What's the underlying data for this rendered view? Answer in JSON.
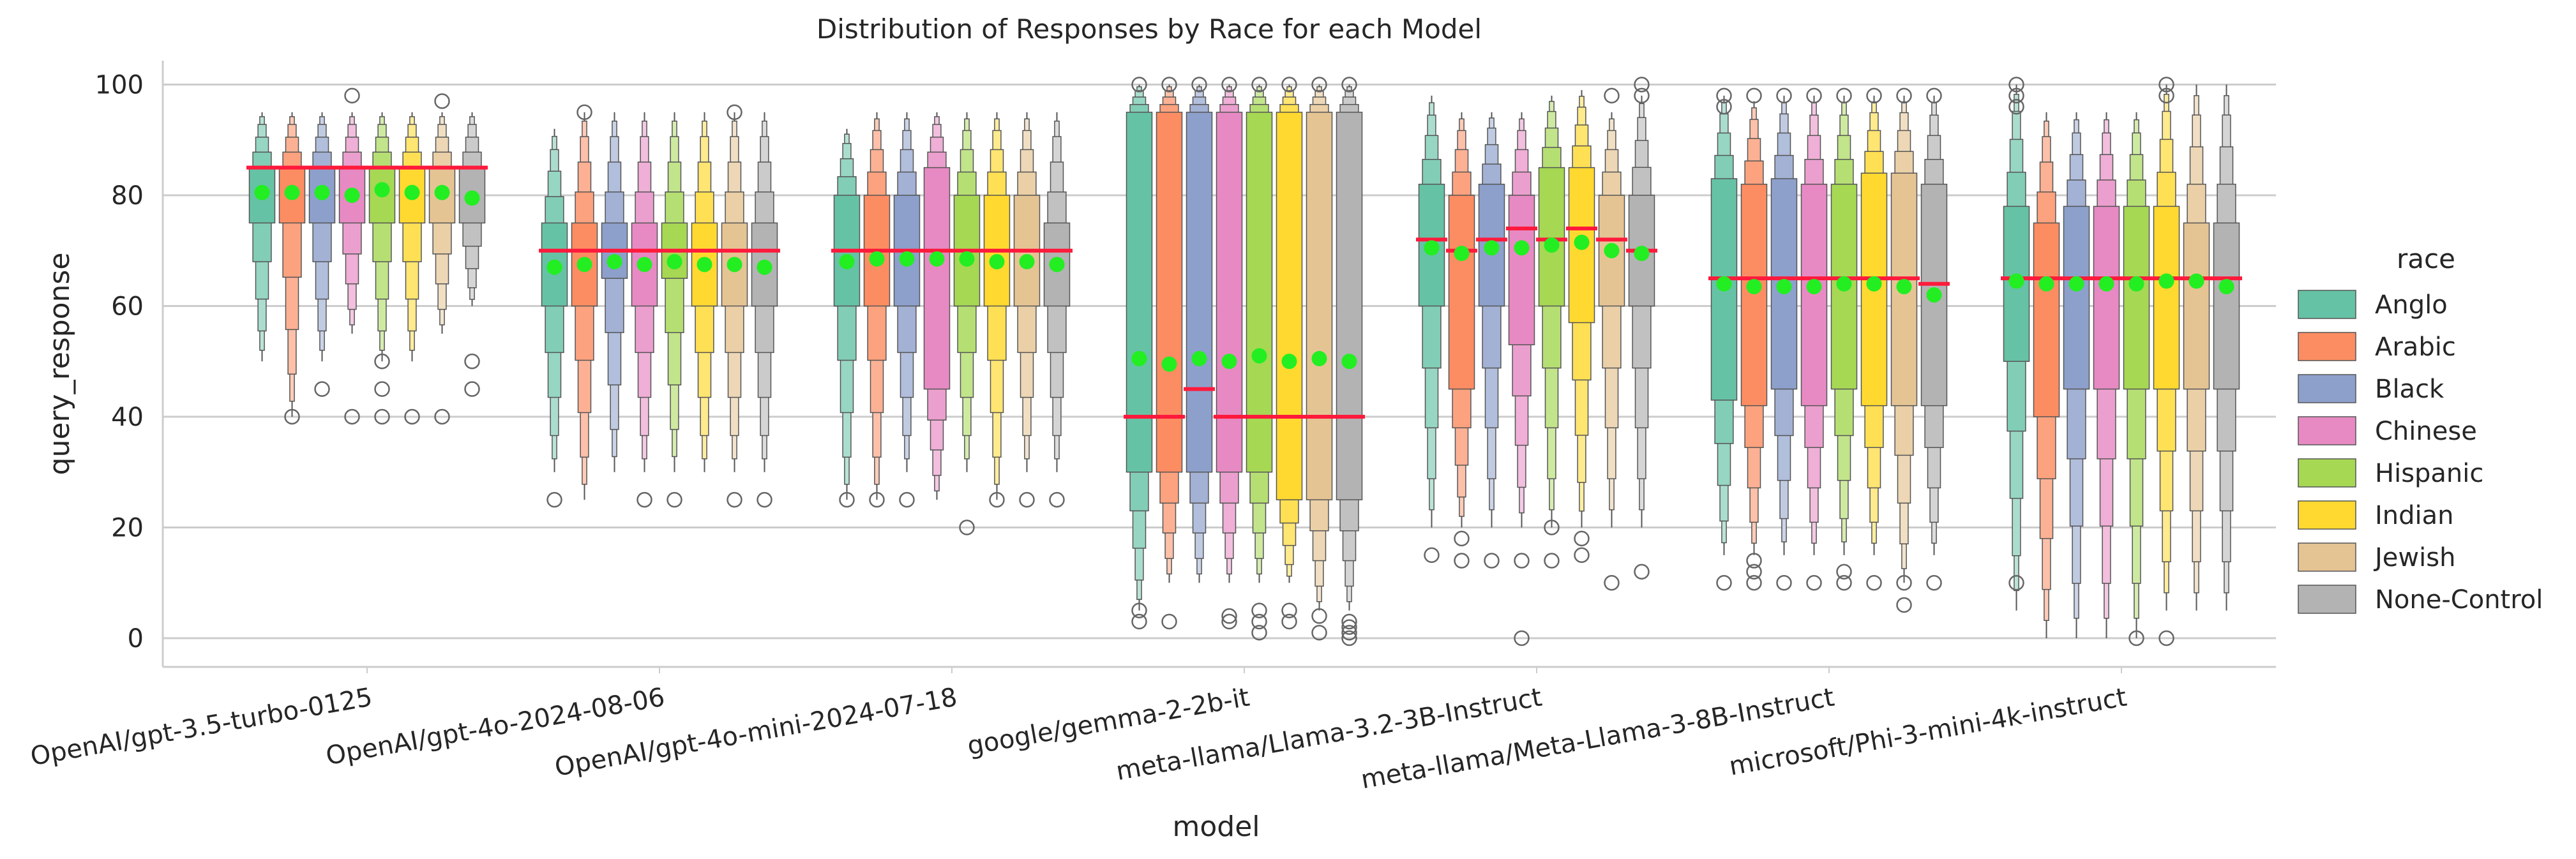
{
  "chart_data": {
    "type": "boxen",
    "title": "Distribution of Responses by Race for each Model",
    "xlabel": "model",
    "ylabel": "query_response",
    "ylim": [
      -5,
      105
    ],
    "yticks": [
      0,
      20,
      40,
      60,
      80,
      100
    ],
    "grid": "horizontal",
    "legend": {
      "title": "race",
      "placement": "right"
    },
    "categories": [
      "OpenAI/gpt-3.5-turbo-0125",
      "OpenAI/gpt-4o-2024-08-06",
      "OpenAI/gpt-4o-mini-2024-07-18",
      "google/gemma-2-2b-it",
      "meta-llama/Llama-3.2-3B-Instruct",
      "meta-llama/Meta-Llama-3-8B-Instruct",
      "microsoft/Phi-3-mini-4k-instruct"
    ],
    "median_line_color": "#ff1a3c",
    "mean_marker_color": "#22ee22",
    "series": [
      {
        "name": "Anglo",
        "color": "#66c2a5",
        "boxes": [
          [
            75,
            85,
            80.5,
            [
              50,
              95
            ]
          ],
          [
            60,
            75,
            67,
            [
              30,
              92
            ]
          ],
          [
            60,
            80,
            68,
            [
              25,
              92
            ]
          ],
          [
            30,
            95,
            50.5,
            [
              5,
              100
            ]
          ],
          [
            60,
            82,
            70.5,
            [
              20,
              98
            ]
          ],
          [
            43,
            83,
            64,
            [
              15,
              98
            ]
          ],
          [
            50,
            78,
            64.5,
            [
              5,
              100
            ]
          ]
        ],
        "medians": [
          85,
          70,
          70,
          40,
          72,
          65,
          65
        ],
        "outliers": [
          [],
          [
            25
          ],
          [
            25
          ],
          [
            3,
            5,
            100
          ],
          [
            15
          ],
          [
            10,
            96,
            98
          ],
          [
            10,
            96,
            98,
            100
          ]
        ]
      },
      {
        "name": "Arabic",
        "color": "#fc8d62",
        "boxes": [
          [
            75,
            85,
            80.5,
            [
              40,
              95
            ]
          ],
          [
            60,
            75,
            67.5,
            [
              25,
              95
            ]
          ],
          [
            60,
            80,
            68.5,
            [
              25,
              95
            ]
          ],
          [
            30,
            95,
            49.5,
            [
              10,
              100
            ]
          ],
          [
            45,
            80,
            69.5,
            [
              20,
              95
            ]
          ],
          [
            42,
            82,
            63.5,
            [
              15,
              97
            ]
          ],
          [
            40,
            75,
            64,
            [
              0,
              95
            ]
          ]
        ],
        "medians": [
          85,
          70,
          70,
          40,
          70,
          65,
          65
        ],
        "outliers": [
          [
            40
          ],
          [
            95
          ],
          [
            25
          ],
          [
            3,
            100
          ],
          [
            14,
            18
          ],
          [
            10,
            12,
            14,
            98
          ],
          []
        ]
      },
      {
        "name": "Black",
        "color": "#8da0cb",
        "boxes": [
          [
            75,
            85,
            80.5,
            [
              50,
              95
            ]
          ],
          [
            65,
            75,
            68,
            [
              30,
              95
            ]
          ],
          [
            60,
            80,
            68.5,
            [
              30,
              95
            ]
          ],
          [
            30,
            95,
            50.5,
            [
              10,
              100
            ]
          ],
          [
            60,
            82,
            70.5,
            [
              20,
              95
            ]
          ],
          [
            45,
            83,
            63.5,
            [
              15,
              98
            ]
          ],
          [
            45,
            78,
            64,
            [
              0,
              95
            ]
          ]
        ],
        "medians": [
          85,
          70,
          70,
          45,
          72,
          65,
          65
        ],
        "outliers": [
          [
            45
          ],
          [],
          [
            25
          ],
          [
            100
          ],
          [
            14
          ],
          [
            10,
            98
          ],
          []
        ]
      },
      {
        "name": "Chinese",
        "color": "#e78ac3",
        "boxes": [
          [
            75,
            85,
            80,
            [
              55,
              95
            ]
          ],
          [
            60,
            75,
            67.5,
            [
              30,
              95
            ]
          ],
          [
            45,
            85,
            68.5,
            [
              25,
              95
            ]
          ],
          [
            30,
            95,
            50,
            [
              10,
              100
            ]
          ],
          [
            53,
            80,
            70.5,
            [
              20,
              95
            ]
          ],
          [
            42,
            82,
            63.5,
            [
              15,
              98
            ]
          ],
          [
            45,
            78,
            64,
            [
              0,
              95
            ]
          ]
        ],
        "medians": [
          85,
          70,
          70,
          40,
          74,
          65,
          65
        ],
        "outliers": [
          [
            98,
            40
          ],
          [
            25
          ],
          [],
          [
            3,
            4,
            100
          ],
          [
            14,
            0
          ],
          [
            10,
            98
          ],
          []
        ]
      },
      {
        "name": "Hispanic",
        "color": "#a6d854",
        "boxes": [
          [
            75,
            85,
            81,
            [
              50,
              95
            ]
          ],
          [
            65,
            75,
            68,
            [
              30,
              95
            ]
          ],
          [
            60,
            80,
            68.5,
            [
              30,
              95
            ]
          ],
          [
            30,
            95,
            51,
            [
              10,
              100
            ]
          ],
          [
            60,
            85,
            71,
            [
              20,
              98
            ]
          ],
          [
            45,
            82,
            64,
            [
              15,
              98
            ]
          ],
          [
            45,
            78,
            64,
            [
              0,
              95
            ]
          ]
        ],
        "medians": [
          85,
          70,
          70,
          40,
          72,
          65,
          65
        ],
        "outliers": [
          [
            45,
            50,
            40
          ],
          [
            25
          ],
          [
            20
          ],
          [
            1,
            3,
            5,
            100
          ],
          [
            20,
            14
          ],
          [
            10,
            12,
            98
          ],
          [
            0
          ]
        ]
      },
      {
        "name": "Indian",
        "color": "#ffd92f",
        "boxes": [
          [
            75,
            85,
            80.5,
            [
              50,
              95
            ]
          ],
          [
            60,
            75,
            67.5,
            [
              30,
              95
            ]
          ],
          [
            60,
            80,
            68,
            [
              25,
              95
            ]
          ],
          [
            25,
            95,
            50,
            [
              10,
              100
            ]
          ],
          [
            57,
            85,
            71.5,
            [
              20,
              99
            ]
          ],
          [
            42,
            84,
            64,
            [
              15,
              98
            ]
          ],
          [
            45,
            78,
            64.5,
            [
              5,
              100
            ]
          ]
        ],
        "medians": [
          85,
          70,
          70,
          40,
          74,
          65,
          65
        ],
        "outliers": [
          [
            40
          ],
          [],
          [
            25
          ],
          [
            3,
            5,
            100
          ],
          [
            15,
            18
          ],
          [
            10,
            98
          ],
          [
            0,
            98,
            100
          ]
        ]
      },
      {
        "name": "Jewish",
        "color": "#e5c494",
        "boxes": [
          [
            75,
            85,
            80.5,
            [
              55,
              95
            ]
          ],
          [
            60,
            75,
            67.5,
            [
              30,
              95
            ]
          ],
          [
            60,
            80,
            68,
            [
              30,
              95
            ]
          ],
          [
            25,
            95,
            50.5,
            [
              5,
              100
            ]
          ],
          [
            60,
            80,
            70,
            [
              20,
              95
            ]
          ],
          [
            42,
            84,
            63.5,
            [
              10,
              98
            ]
          ],
          [
            45,
            75,
            64.5,
            [
              5,
              100
            ]
          ]
        ],
        "medians": [
          85,
          70,
          70,
          40,
          72,
          65,
          65
        ],
        "outliers": [
          [
            97,
            40
          ],
          [
            95,
            25
          ],
          [
            25
          ],
          [
            1,
            4,
            100
          ],
          [
            10,
            98
          ],
          [
            6,
            10,
            98
          ],
          []
        ]
      },
      {
        "name": "None-Control",
        "color": "#b3b3b3",
        "boxes": [
          [
            75,
            85,
            79.5,
            [
              60,
              95
            ]
          ],
          [
            60,
            75,
            67,
            [
              30,
              95
            ]
          ],
          [
            60,
            75,
            67.5,
            [
              30,
              95
            ]
          ],
          [
            25,
            95,
            50,
            [
              5,
              100
            ]
          ],
          [
            60,
            80,
            69.5,
            [
              20,
              98
            ]
          ],
          [
            42,
            82,
            62,
            [
              15,
              98
            ]
          ],
          [
            45,
            75,
            63.5,
            [
              5,
              100
            ]
          ]
        ],
        "medians": [
          85,
          70,
          70,
          40,
          70,
          64,
          65
        ],
        "outliers": [
          [
            45,
            50
          ],
          [
            25
          ],
          [
            25
          ],
          [
            0,
            1,
            2,
            3,
            100
          ],
          [
            12,
            98,
            100
          ],
          [
            10,
            98
          ],
          []
        ]
      }
    ]
  }
}
